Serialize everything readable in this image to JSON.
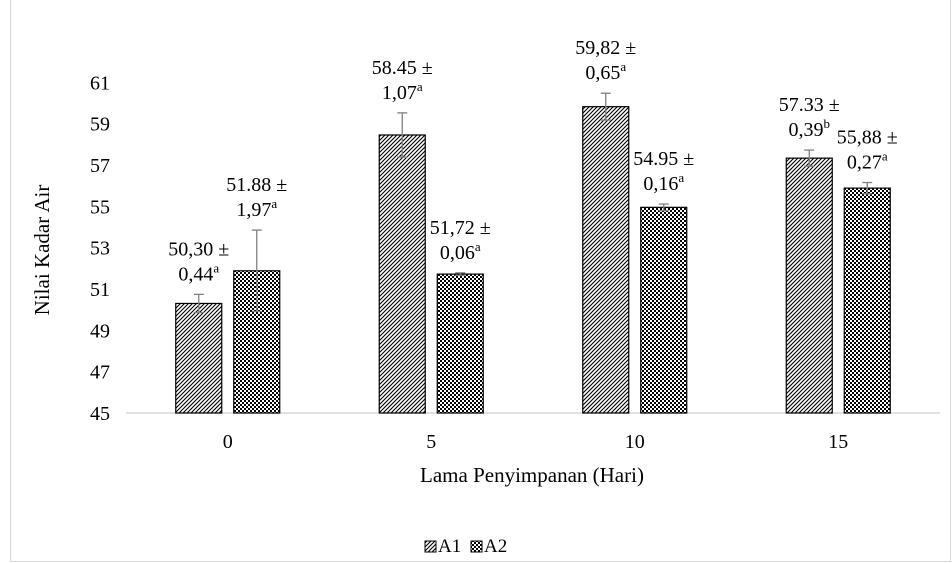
{
  "chart_data": {
    "type": "bar",
    "xlabel": "Lama Penyimpanan (Hari)",
    "ylabel": "Nilai Kadar Air",
    "ylim": [
      45,
      62
    ],
    "yticks": [
      45,
      47,
      49,
      51,
      53,
      55,
      57,
      59,
      61
    ],
    "grid": false,
    "legend_position": "bottom",
    "categories": [
      "0",
      "5",
      "10",
      "15"
    ],
    "series": [
      {
        "name": "A1",
        "pattern": "diagonal-hatch",
        "values": [
          50.3,
          58.45,
          59.82,
          57.33
        ],
        "errors": [
          0.44,
          1.07,
          0.65,
          0.39
        ],
        "labels": [
          {
            "main": "50,30 ±",
            "err": "0,44",
            "sup": "a"
          },
          {
            "main": "58.45 ±",
            "err": "1,07",
            "sup": "a"
          },
          {
            "main": "59,82 ±",
            "err": "0,65",
            "sup": "a"
          },
          {
            "main": "57.33 ±",
            "err": "0,39",
            "sup": "b"
          }
        ]
      },
      {
        "name": "A2",
        "pattern": "checker-dots",
        "values": [
          51.88,
          51.72,
          54.95,
          55.88
        ],
        "errors": [
          1.97,
          0.06,
          0.16,
          0.27
        ],
        "labels": [
          {
            "main": "51.88 ±",
            "err": "1,97",
            "sup": "a"
          },
          {
            "main": "51,72 ±",
            "err": "0,06",
            "sup": "a"
          },
          {
            "main": "54.95 ±",
            "err": "0,16",
            "sup": "a"
          },
          {
            "main": "55,88 ±",
            "err": "0,27",
            "sup": "a"
          }
        ]
      }
    ]
  }
}
